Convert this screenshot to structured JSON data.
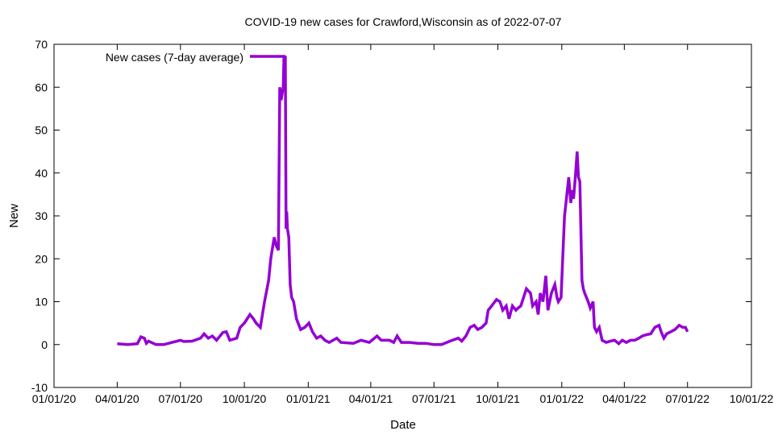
{
  "chart_data": {
    "type": "line",
    "title": "COVID-19 new cases for Crawford,Wisconsin as of 2022-07-07",
    "xlabel": "Date",
    "ylabel": "New",
    "x_unit": "days since 2020-01-01",
    "xlim": [
      0,
      1004
    ],
    "ylim": [
      -10,
      70
    ],
    "y_ticks": [
      -10,
      0,
      10,
      20,
      30,
      40,
      50,
      60,
      70
    ],
    "x_ticks": [
      {
        "day": 0,
        "label": "01/01/20"
      },
      {
        "day": 91,
        "label": "04/01/20"
      },
      {
        "day": 182,
        "label": "07/01/20"
      },
      {
        "day": 274,
        "label": "10/01/20"
      },
      {
        "day": 366,
        "label": "01/01/21"
      },
      {
        "day": 456,
        "label": "04/01/21"
      },
      {
        "day": 547,
        "label": "07/01/21"
      },
      {
        "day": 639,
        "label": "10/01/21"
      },
      {
        "day": 731,
        "label": "01/01/22"
      },
      {
        "day": 821,
        "label": "04/01/22"
      },
      {
        "day": 912,
        "label": "07/01/22"
      },
      {
        "day": 1004,
        "label": "10/01/22"
      }
    ],
    "grid": false,
    "legend_position": "top-left",
    "series": [
      {
        "name": "New cases (7-day average)",
        "color": "#9400D3",
        "points": [
          [
            91,
            0.2
          ],
          [
            106,
            0
          ],
          [
            120,
            0.2
          ],
          [
            125,
            1.8
          ],
          [
            130,
            1.5
          ],
          [
            133,
            0.3
          ],
          [
            136,
            0.8
          ],
          [
            147,
            0
          ],
          [
            158,
            0
          ],
          [
            170,
            0.5
          ],
          [
            182,
            1
          ],
          [
            187,
            0.7
          ],
          [
            199,
            0.8
          ],
          [
            211,
            1.5
          ],
          [
            216,
            2.5
          ],
          [
            222,
            1.5
          ],
          [
            228,
            2
          ],
          [
            234,
            1
          ],
          [
            243,
            2.8
          ],
          [
            248,
            3
          ],
          [
            253,
            1
          ],
          [
            263,
            1.5
          ],
          [
            268,
            4
          ],
          [
            274,
            5
          ],
          [
            282,
            7
          ],
          [
            287,
            6
          ],
          [
            291,
            5
          ],
          [
            297,
            4
          ],
          [
            303,
            10
          ],
          [
            309,
            15
          ],
          [
            312,
            20
          ],
          [
            317,
            25
          ],
          [
            320,
            23
          ],
          [
            323,
            22
          ],
          [
            325,
            60
          ],
          [
            327,
            57
          ],
          [
            330,
            60
          ],
          [
            331,
            67
          ],
          [
            333,
            67
          ],
          [
            334,
            27
          ],
          [
            335,
            31
          ],
          [
            336,
            27
          ],
          [
            338,
            25
          ],
          [
            340,
            14
          ],
          [
            342,
            11
          ],
          [
            345,
            10
          ],
          [
            349,
            6
          ],
          [
            355,
            3.5
          ],
          [
            361,
            4
          ],
          [
            367,
            5
          ],
          [
            372,
            3
          ],
          [
            378,
            1.5
          ],
          [
            384,
            2
          ],
          [
            390,
            1
          ],
          [
            396,
            0.5
          ],
          [
            407,
            1.5
          ],
          [
            413,
            0.5
          ],
          [
            431,
            0.3
          ],
          [
            442,
            1
          ],
          [
            454,
            0.5
          ],
          [
            465,
            2
          ],
          [
            471,
            1
          ],
          [
            483,
            1
          ],
          [
            489,
            0.5
          ],
          [
            494,
            2
          ],
          [
            500,
            0.5
          ],
          [
            512,
            0.5
          ],
          [
            524,
            0.3
          ],
          [
            535,
            0.3
          ],
          [
            547,
            0
          ],
          [
            558,
            0
          ],
          [
            570,
            0.8
          ],
          [
            582,
            1.5
          ],
          [
            587,
            0.8
          ],
          [
            593,
            2
          ],
          [
            599,
            4
          ],
          [
            605,
            4.5
          ],
          [
            610,
            3.5
          ],
          [
            616,
            4
          ],
          [
            622,
            5
          ],
          [
            625,
            8
          ],
          [
            630,
            9
          ],
          [
            637,
            10.5
          ],
          [
            642,
            10
          ],
          [
            646,
            8
          ],
          [
            651,
            9
          ],
          [
            655,
            6
          ],
          [
            660,
            9
          ],
          [
            665,
            8
          ],
          [
            668,
            8.5
          ],
          [
            672,
            9
          ],
          [
            676,
            11
          ],
          [
            680,
            13
          ],
          [
            686,
            12
          ],
          [
            689,
            9
          ],
          [
            694,
            10
          ],
          [
            697,
            7
          ],
          [
            700,
            12
          ],
          [
            704,
            10
          ],
          [
            708,
            16
          ],
          [
            711,
            8
          ],
          [
            716,
            12
          ],
          [
            721,
            14
          ],
          [
            724,
            11
          ],
          [
            726,
            10
          ],
          [
            730,
            11
          ],
          [
            732,
            19
          ],
          [
            735,
            30
          ],
          [
            739,
            36
          ],
          [
            741,
            39
          ],
          [
            744,
            33
          ],
          [
            746,
            36
          ],
          [
            748,
            34
          ],
          [
            751,
            40
          ],
          [
            753,
            45
          ],
          [
            755,
            39
          ],
          [
            757,
            38
          ],
          [
            760,
            15
          ],
          [
            762,
            13
          ],
          [
            764,
            12
          ],
          [
            769,
            10
          ],
          [
            772,
            8.5
          ],
          [
            776,
            10
          ],
          [
            778,
            4
          ],
          [
            781,
            3
          ],
          [
            785,
            4
          ],
          [
            789,
            1
          ],
          [
            795,
            0.5
          ],
          [
            801,
            0.8
          ],
          [
            807,
            1
          ],
          [
            813,
            0.2
          ],
          [
            818,
            1
          ],
          [
            824,
            0.5
          ],
          [
            830,
            1
          ],
          [
            836,
            1
          ],
          [
            842,
            1.5
          ],
          [
            847,
            2
          ],
          [
            853,
            2.3
          ],
          [
            859,
            2.5
          ],
          [
            865,
            4
          ],
          [
            871,
            4.5
          ],
          [
            874,
            3
          ],
          [
            878,
            1.5
          ],
          [
            882,
            2.5
          ],
          [
            888,
            3
          ],
          [
            894,
            3.5
          ],
          [
            900,
            4.5
          ],
          [
            905,
            4
          ],
          [
            909,
            4
          ],
          [
            912,
            3
          ]
        ]
      }
    ]
  }
}
